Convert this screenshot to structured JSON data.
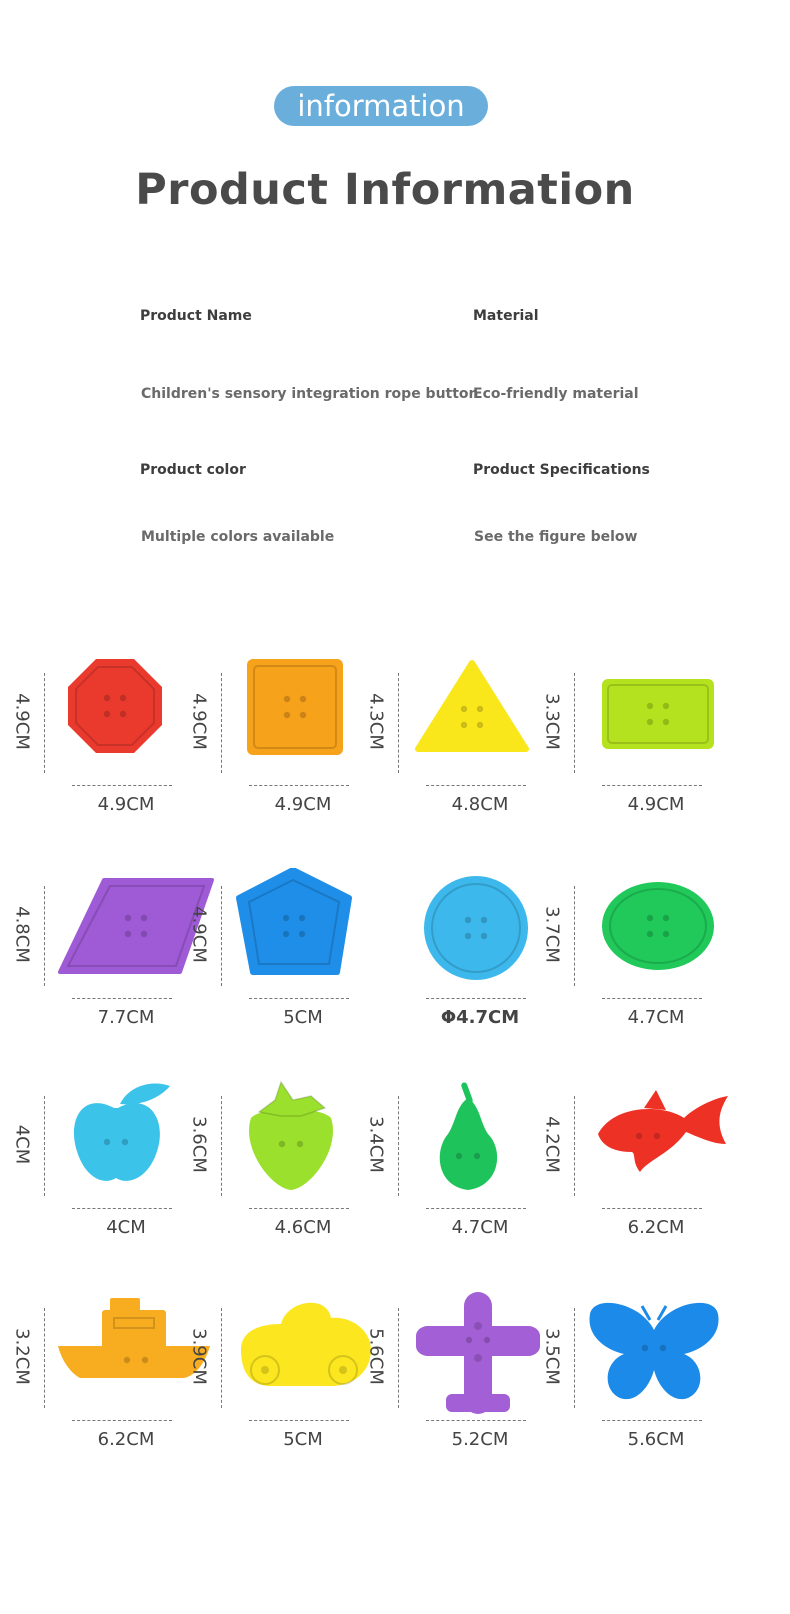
{
  "badge": "information",
  "title": "Product Information",
  "info": {
    "name_label": "Product Name",
    "name_value": "Children's sensory integration rope button",
    "material_label": "Material",
    "material_value": "Eco-friendly material",
    "color_label": "Product color",
    "color_value": "Multiple colors available",
    "spec_label": "Product Specifications",
    "spec_value": "See the figure below"
  },
  "items": [
    {
      "shape": "octagon",
      "color": "#ea3a2e",
      "width": "4.9CM",
      "height": "4.9CM"
    },
    {
      "shape": "square",
      "color": "#f7a21b",
      "width": "4.9CM",
      "height": "4.9CM"
    },
    {
      "shape": "triangle",
      "color": "#f9e71b",
      "width": "4.8CM",
      "height": "4.3CM"
    },
    {
      "shape": "rectangle",
      "color": "#b5e21e",
      "width": "4.9CM",
      "height": "3.3CM"
    },
    {
      "shape": "rhombus",
      "color": "#9f5ad6",
      "width": "7.7CM",
      "height": "4.8CM"
    },
    {
      "shape": "pentagon",
      "color": "#1f8ee8",
      "width": "5CM",
      "height": "4.9CM"
    },
    {
      "shape": "circle",
      "color": "#3db8ec",
      "width": "Φ4.7CM",
      "height": ""
    },
    {
      "shape": "oval",
      "color": "#20c95a",
      "width": "4.7CM",
      "height": "3.7CM"
    },
    {
      "shape": "apple",
      "color": "#3bc3ea",
      "width": "4CM",
      "height": "4CM"
    },
    {
      "shape": "strawberry",
      "color": "#9ae02c",
      "width": "4.6CM",
      "height": "3.6CM"
    },
    {
      "shape": "pear",
      "color": "#1fc35c",
      "width": "4.7CM",
      "height": "3.4CM"
    },
    {
      "shape": "fish",
      "color": "#ee3125",
      "width": "6.2CM",
      "height": "4.2CM"
    },
    {
      "shape": "boat",
      "color": "#f8ac20",
      "width": "6.2CM",
      "height": "3.2CM"
    },
    {
      "shape": "car",
      "color": "#fbe61f",
      "width": "5CM",
      "height": "3.9CM"
    },
    {
      "shape": "plane",
      "color": "#a35fd6",
      "width": "5.2CM",
      "height": "5.6CM"
    },
    {
      "shape": "butterfly",
      "color": "#1c8ae8",
      "width": "5.6CM",
      "height": "3.5CM"
    }
  ]
}
